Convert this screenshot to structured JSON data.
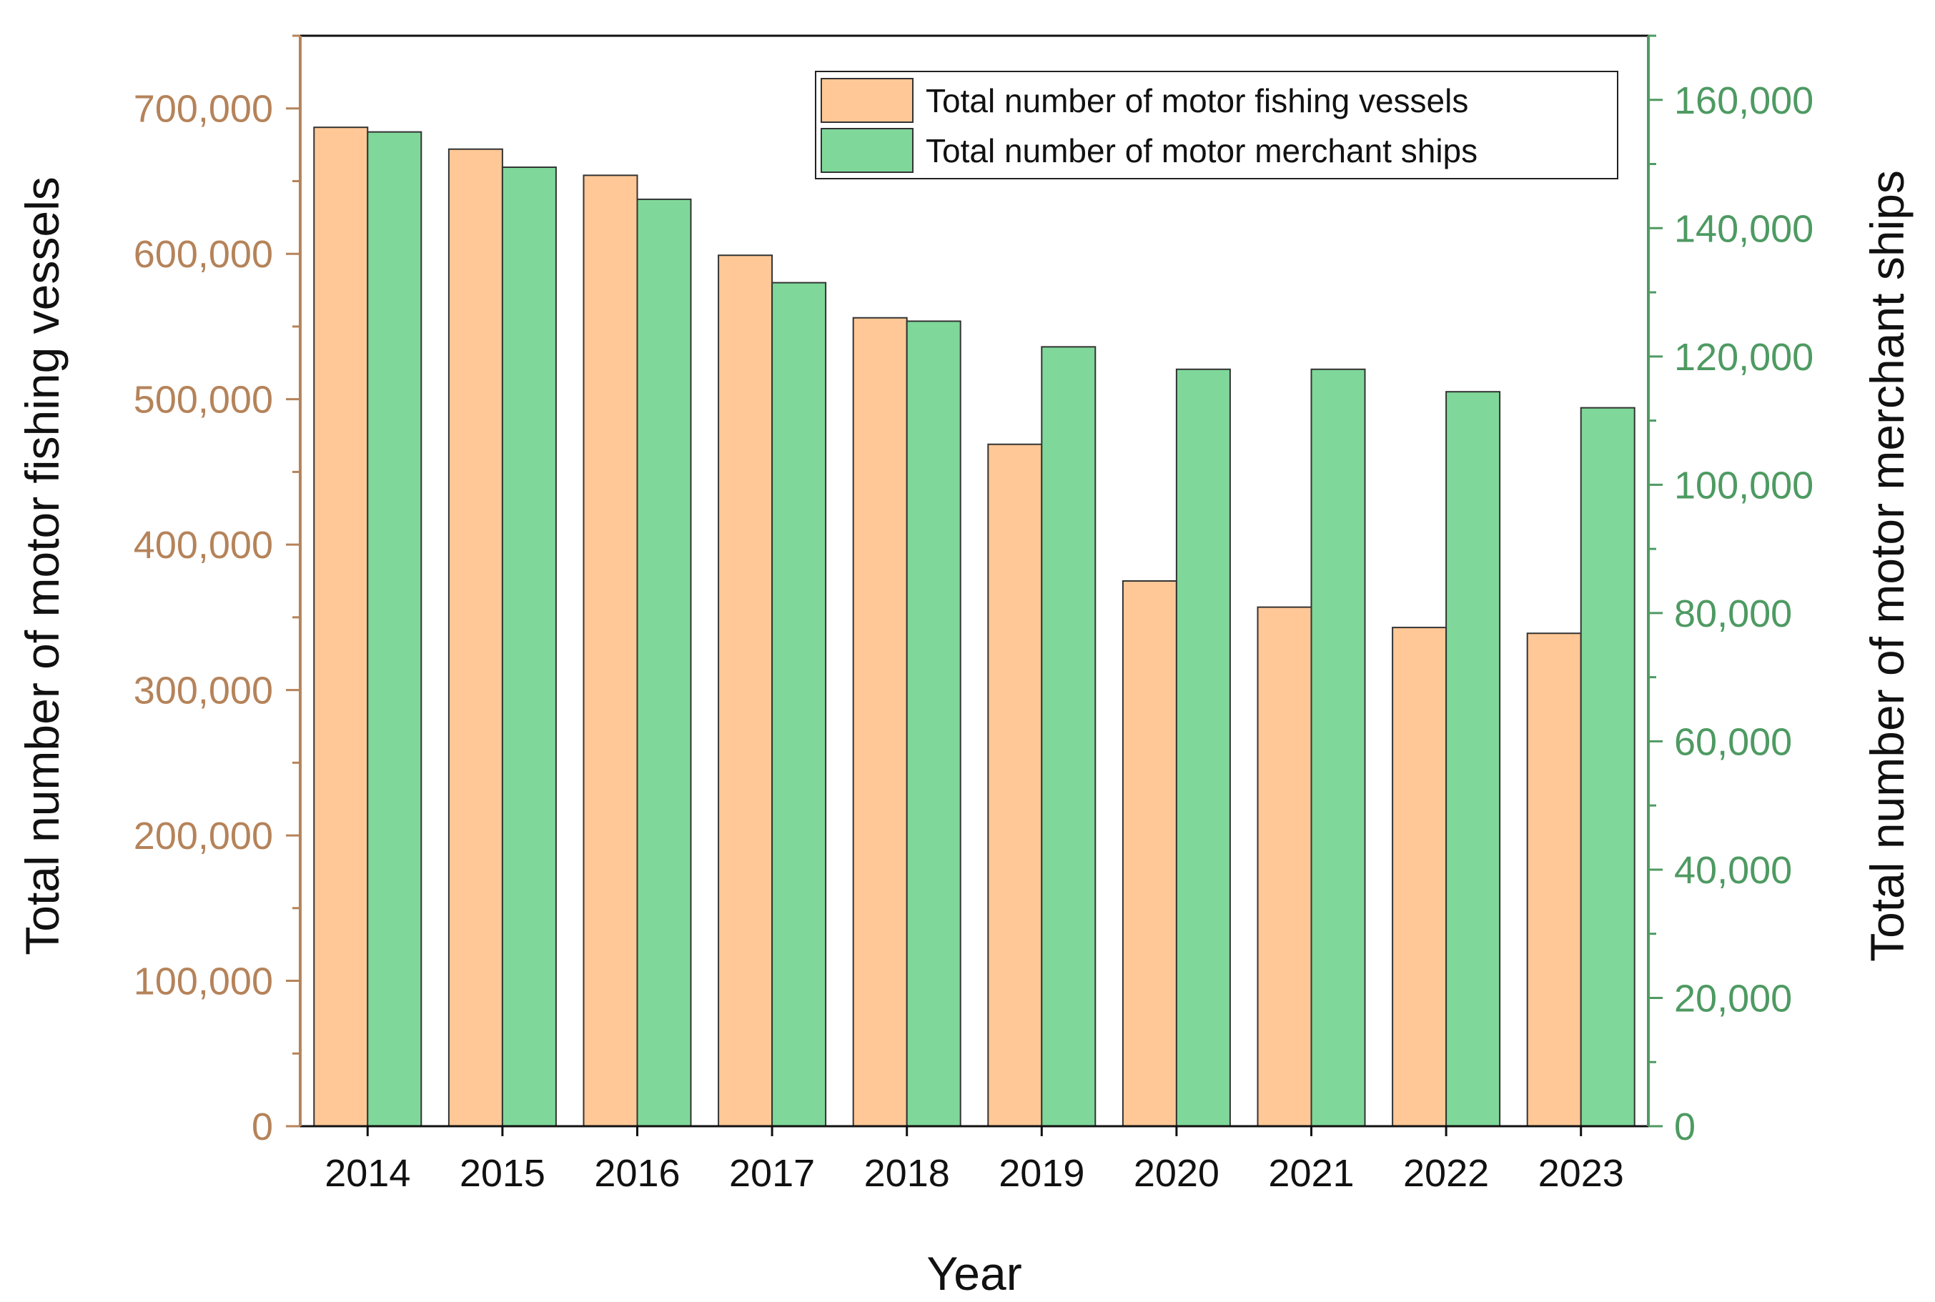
{
  "chart_data": {
    "type": "bar",
    "title": "",
    "xlabel": "Year",
    "ylabel_left": "Total number of motor fishing vessels",
    "ylabel_right": "Total number of motor merchant ships",
    "categories": [
      "2014",
      "2015",
      "2016",
      "2017",
      "2018",
      "2019",
      "2020",
      "2021",
      "2022",
      "2023"
    ],
    "series": [
      {
        "name": "Total number of motor fishing vessels",
        "axis": "left",
        "color": "#FFC896",
        "values": [
          687000,
          672000,
          654000,
          599000,
          556000,
          469000,
          375000,
          357000,
          343000,
          339000
        ]
      },
      {
        "name": "Total number of motor merchant ships",
        "axis": "right",
        "color": "#7FD899",
        "values": [
          155000,
          149500,
          144500,
          131500,
          125500,
          121500,
          118000,
          118000,
          114500,
          112000
        ]
      }
    ],
    "ylim_left": [
      0,
      750000
    ],
    "yticks_left": [
      "0",
      "100,000",
      "200,000",
      "300,000",
      "400,000",
      "500,000",
      "600,000",
      "700,000"
    ],
    "ylim_right": [
      0,
      170000
    ],
    "yticks_right": [
      "0",
      "20,000",
      "40,000",
      "60,000",
      "80,000",
      "100,000",
      "120,000",
      "140,000",
      "160,000"
    ],
    "legend_position": "top-right",
    "grid": false,
    "colors": {
      "left_axis": "#B5835A",
      "right_axis": "#4E9A62",
      "bar_edge": "#333333"
    }
  }
}
